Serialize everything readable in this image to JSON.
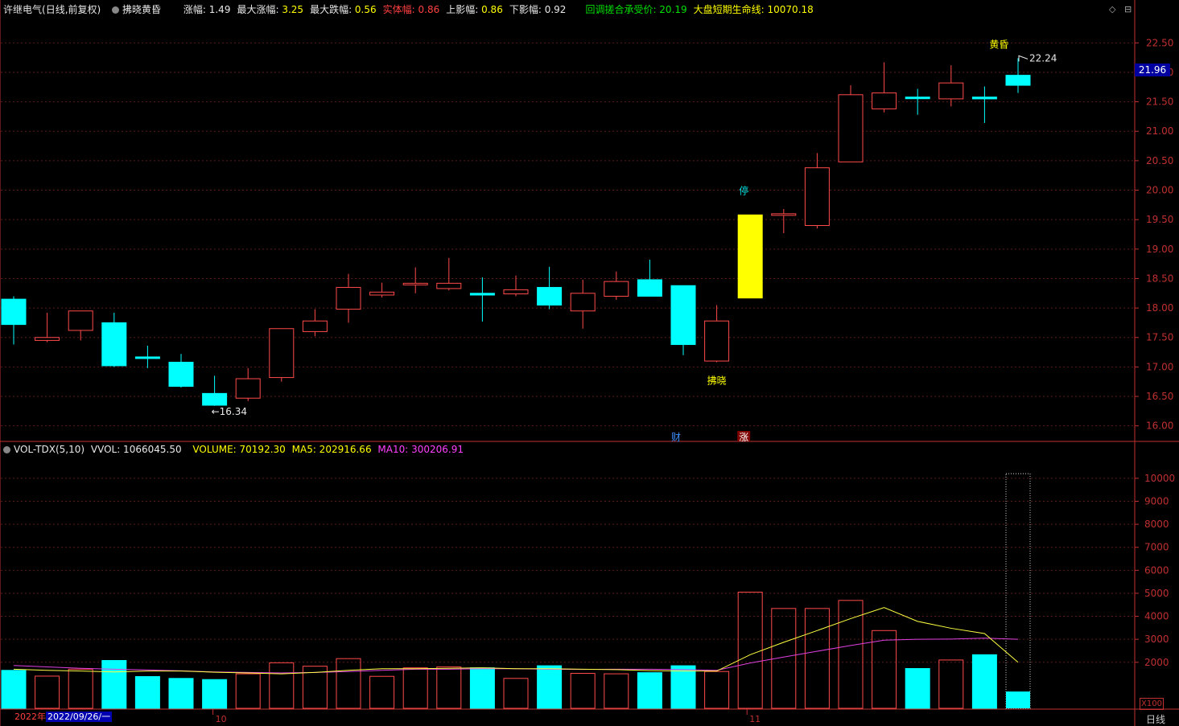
{
  "header": {
    "stock": "许继电气",
    "mode": "(日线,前复权)",
    "indicator": "拂晓黄昏",
    "stats": [
      {
        "label": "涨幅:",
        "value": "1.49",
        "color": "#e8e8e8"
      },
      {
        "label": "最大涨幅:",
        "value": "3.25",
        "color": "#ffff00"
      },
      {
        "label": "最大跌幅:",
        "value": "0.56",
        "color": "#ffff00"
      },
      {
        "label": "实体幅:",
        "value": "0.86",
        "color": "#ff4040"
      },
      {
        "label": "上影幅:",
        "value": "0.86",
        "color": "#ffff00"
      },
      {
        "label": "下影幅:",
        "value": "0.92",
        "color": "#e8e8e8"
      },
      {
        "label": "回调搓合承受价:",
        "value": "20.19",
        "color": "#00e000"
      },
      {
        "label": "大盘短期生命线:",
        "value": "10070.18",
        "color": "#ffff00"
      }
    ]
  },
  "right_icons": [
    "◇",
    "⊟"
  ],
  "price_axis": {
    "ticks": [
      "22.50",
      "22.00",
      "21.50",
      "21.00",
      "20.50",
      "20.00",
      "19.50",
      "19.00",
      "18.50",
      "18.00",
      "17.50",
      "17.00",
      "16.50",
      "16.00"
    ],
    "current": "21.96"
  },
  "volume_panel": {
    "name": "VOL-TDX(5,10)",
    "vvol": "VVOL: 1066045.50",
    "volume": "VOLUME: 70192.30",
    "ma5": "MA5: 202916.66",
    "ma10": "MA10: 300206.91",
    "ticks": [
      "10000",
      "9000",
      "8000",
      "7000",
      "6000",
      "5000",
      "4000",
      "3000",
      "2000"
    ],
    "unit": "X100"
  },
  "annotations": {
    "low": "←16.34",
    "high": "22.24",
    "dawn": "拂晓",
    "dusk": "黄昏",
    "stop": "停",
    "fin": "财",
    "up": "涨"
  },
  "x_axis": {
    "year": "2022年",
    "cursor_date": "2022/09/26/一",
    "month10": "10",
    "month11": "11",
    "period": "日线"
  },
  "colors": {
    "up": "#ff4a4a",
    "down": "#00ffff",
    "limit": "#ffff00",
    "ma5": "#ffff40",
    "ma10": "#e040e0",
    "axis": "#c03030"
  },
  "chart_data": {
    "type": "candlestick",
    "ylim": [
      15.75,
      22.9
    ],
    "candles": [
      {
        "o": 18.15,
        "c": 17.72,
        "h": 18.2,
        "l": 17.38
      },
      {
        "o": 17.45,
        "c": 17.5,
        "h": 17.92,
        "l": 17.42
      },
      {
        "o": 17.62,
        "c": 17.95,
        "h": 17.95,
        "l": 17.45
      },
      {
        "o": 17.75,
        "c": 17.02,
        "h": 17.92,
        "l": 17.0
      },
      {
        "o": 17.17,
        "c": 17.15,
        "h": 17.36,
        "l": 16.98
      },
      {
        "o": 17.08,
        "c": 16.67,
        "h": 17.22,
        "l": 16.65
      },
      {
        "o": 16.55,
        "c": 16.35,
        "h": 16.85,
        "l": 16.34
      },
      {
        "o": 16.47,
        "c": 16.8,
        "h": 16.98,
        "l": 16.42
      },
      {
        "o": 16.82,
        "c": 17.65,
        "h": 17.65,
        "l": 16.75
      },
      {
        "o": 17.6,
        "c": 17.78,
        "h": 17.98,
        "l": 17.52
      },
      {
        "o": 17.98,
        "c": 18.35,
        "h": 18.58,
        "l": 17.75
      },
      {
        "o": 18.22,
        "c": 18.27,
        "h": 18.43,
        "l": 18.18
      },
      {
        "o": 18.4,
        "c": 18.42,
        "h": 18.69,
        "l": 18.25
      },
      {
        "o": 18.33,
        "c": 18.42,
        "h": 18.85,
        "l": 18.3
      },
      {
        "o": 18.25,
        "c": 18.22,
        "h": 18.52,
        "l": 17.77
      },
      {
        "o": 18.24,
        "c": 18.31,
        "h": 18.55,
        "l": 18.2
      },
      {
        "o": 18.35,
        "c": 18.05,
        "h": 18.7,
        "l": 17.98
      },
      {
        "o": 17.95,
        "c": 18.25,
        "h": 18.48,
        "l": 17.65
      },
      {
        "o": 18.2,
        "c": 18.45,
        "h": 18.62,
        "l": 18.14
      },
      {
        "o": 18.48,
        "c": 18.2,
        "h": 18.82,
        "l": 18.2
      },
      {
        "o": 18.38,
        "c": 17.38,
        "h": 18.38,
        "l": 17.2
      },
      {
        "o": 17.1,
        "c": 17.78,
        "h": 18.05,
        "l": 17.08
      },
      {
        "o": 18.17,
        "c": 19.58,
        "h": 19.58,
        "l": 18.17,
        "limit": true
      },
      {
        "o": 19.58,
        "c": 19.6,
        "h": 19.68,
        "l": 19.27
      },
      {
        "o": 19.4,
        "c": 20.38,
        "h": 20.63,
        "l": 19.35
      },
      {
        "o": 20.48,
        "c": 21.62,
        "h": 21.78,
        "l": 20.48
      },
      {
        "o": 21.38,
        "c": 21.65,
        "h": 22.17,
        "l": 21.32
      },
      {
        "o": 21.58,
        "c": 21.56,
        "h": 21.72,
        "l": 21.28
      },
      {
        "o": 21.55,
        "c": 21.82,
        "h": 22.12,
        "l": 21.42
      },
      {
        "o": 21.58,
        "c": 21.55,
        "h": 21.76,
        "l": 21.14
      },
      {
        "o": 21.95,
        "c": 21.78,
        "h": 22.24,
        "l": 21.65
      }
    ],
    "volume_ylim": [
      0,
      10800
    ],
    "volume": [
      1650,
      1400,
      1700,
      2080,
      1380,
      1300,
      1250,
      1500,
      1980,
      1830,
      2160,
      1390,
      1760,
      1800,
      1760,
      1300,
      1850,
      1520,
      1500,
      1550,
      1850,
      1600,
      5050,
      4340,
      4340,
      4690,
      3380,
      1730,
      2100,
      2330,
      10200
    ],
    "volume_fill": [
      0,
      0,
      0,
      0,
      0,
      0,
      0,
      0,
      0,
      0,
      0,
      0,
      0,
      0,
      0,
      0,
      0,
      0,
      0,
      0,
      0,
      0,
      0,
      0,
      0,
      0,
      0,
      0,
      0,
      0,
      730
    ],
    "ma5": [
      1700,
      1650,
      1620,
      1580,
      1620,
      1620,
      1570,
      1540,
      1500,
      1560,
      1650,
      1720,
      1720,
      1740,
      1760,
      1720,
      1720,
      1700,
      1680,
      1640,
      1620,
      1620,
      2330,
      2870,
      3380,
      3900,
      4380,
      3780,
      3480,
      3250,
      2000
    ],
    "ma10": [
      1860,
      1800,
      1740,
      1700,
      1670,
      1630,
      1580,
      1560,
      1540,
      1560,
      1600,
      1650,
      1700,
      1700,
      1720,
      1720,
      1700,
      1690,
      1700,
      1700,
      1680,
      1650,
      1970,
      2230,
      2480,
      2730,
      2960,
      3000,
      3010,
      3050,
      3000
    ]
  }
}
